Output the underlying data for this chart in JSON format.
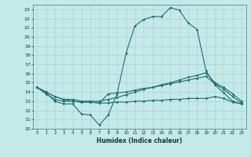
{
  "title": "",
  "xlabel": "Humidex (Indice chaleur)",
  "ylabel": "",
  "bg_color": "#c5e8e8",
  "grid_color": "#aad4d4",
  "line_color": "#1a7070",
  "xlim": [
    -0.5,
    23.5
  ],
  "ylim": [
    10,
    23.5
  ],
  "yticks": [
    10,
    11,
    12,
    13,
    14,
    15,
    16,
    17,
    18,
    19,
    20,
    21,
    22,
    23
  ],
  "xticks": [
    0,
    1,
    2,
    3,
    4,
    5,
    6,
    7,
    8,
    9,
    10,
    11,
    12,
    13,
    14,
    15,
    16,
    17,
    18,
    19,
    20,
    21,
    22,
    23
  ],
  "line1_x": [
    0,
    1,
    2,
    3,
    4,
    5,
    6,
    7,
    8,
    9,
    10,
    11,
    12,
    13,
    14,
    15,
    16,
    17,
    18,
    19,
    20,
    21,
    22,
    23
  ],
  "line1_y": [
    14.5,
    13.9,
    13.0,
    12.7,
    12.7,
    11.6,
    11.5,
    10.4,
    11.5,
    13.8,
    18.2,
    21.2,
    21.9,
    22.2,
    22.2,
    23.2,
    22.9,
    21.5,
    20.8,
    16.3,
    14.8,
    13.9,
    13.0,
    12.7
  ],
  "line2_x": [
    0,
    1,
    2,
    3,
    4,
    5,
    6,
    7,
    8,
    9,
    10,
    11,
    12,
    13,
    14,
    15,
    16,
    17,
    18,
    19,
    20,
    21,
    22,
    23
  ],
  "line2_y": [
    14.5,
    14.0,
    13.5,
    13.2,
    13.2,
    13.0,
    13.0,
    13.0,
    13.2,
    13.4,
    13.7,
    14.0,
    14.3,
    14.5,
    14.8,
    15.0,
    15.3,
    15.6,
    15.8,
    16.1,
    15.0,
    14.5,
    13.8,
    13.0
  ],
  "line3_x": [
    0,
    1,
    2,
    3,
    4,
    5,
    6,
    7,
    8,
    9,
    10,
    11,
    12,
    13,
    14,
    15,
    16,
    17,
    18,
    19,
    20,
    21,
    22,
    23
  ],
  "line3_y": [
    14.5,
    13.8,
    13.2,
    13.0,
    13.0,
    12.9,
    12.9,
    12.8,
    12.8,
    12.9,
    12.9,
    13.0,
    13.0,
    13.1,
    13.1,
    13.2,
    13.2,
    13.3,
    13.3,
    13.3,
    13.5,
    13.3,
    12.9,
    12.7
  ],
  "line4_x": [
    0,
    1,
    2,
    3,
    4,
    5,
    6,
    7,
    8,
    9,
    10,
    11,
    12,
    13,
    14,
    15,
    16,
    17,
    18,
    19,
    20,
    21,
    22,
    23
  ],
  "line4_y": [
    14.5,
    14.0,
    13.5,
    13.2,
    13.0,
    12.9,
    12.9,
    12.8,
    13.8,
    13.9,
    14.0,
    14.2,
    14.4,
    14.5,
    14.7,
    14.9,
    15.1,
    15.3,
    15.5,
    15.7,
    14.9,
    14.3,
    13.5,
    12.8
  ]
}
